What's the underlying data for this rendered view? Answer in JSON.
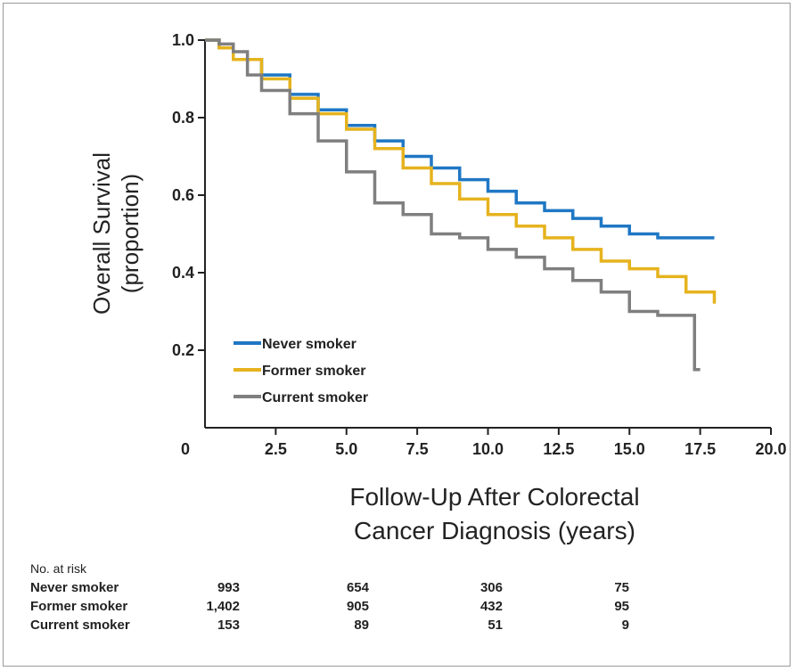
{
  "chart_data": {
    "type": "line",
    "title": "",
    "xlabel_lines": [
      "Follow-Up After Colorectal",
      "Cancer Diagnosis (years)"
    ],
    "ylabel_lines": [
      "Overall Survival",
      "(proportion)"
    ],
    "xlim": [
      0,
      20
    ],
    "ylim": [
      0,
      1.0
    ],
    "x_ticks": [
      "0",
      "2.5",
      "5.0",
      "7.5",
      "10.0",
      "12.5",
      "15.0",
      "17.5",
      "20.0"
    ],
    "y_ticks": [
      "0.2",
      "0.4",
      "0.6",
      "0.8",
      "1.0"
    ],
    "legend_position": "lower-left",
    "series": [
      {
        "name": "Never smoker",
        "color": "#1f77c4",
        "x": [
          0,
          0.5,
          1,
          2,
          3,
          4,
          5,
          6,
          7,
          8,
          9,
          10,
          11,
          12,
          13,
          14,
          15,
          16,
          17,
          18
        ],
        "y": [
          1.0,
          0.98,
          0.95,
          0.91,
          0.86,
          0.82,
          0.78,
          0.74,
          0.7,
          0.67,
          0.64,
          0.61,
          0.58,
          0.56,
          0.54,
          0.52,
          0.5,
          0.49,
          0.49,
          0.49
        ]
      },
      {
        "name": "Former smoker",
        "color": "#e6b31e",
        "x": [
          0,
          0.5,
          1,
          2,
          3,
          4,
          5,
          6,
          7,
          8,
          9,
          10,
          11,
          12,
          13,
          14,
          15,
          16,
          17,
          18
        ],
        "y": [
          1.0,
          0.98,
          0.95,
          0.9,
          0.85,
          0.81,
          0.77,
          0.72,
          0.67,
          0.63,
          0.59,
          0.55,
          0.52,
          0.49,
          0.46,
          0.43,
          0.41,
          0.39,
          0.35,
          0.32
        ]
      },
      {
        "name": "Current smoker",
        "color": "#7f7f7f",
        "x": [
          0,
          0.5,
          1,
          1.5,
          2,
          3,
          4,
          5,
          6,
          7,
          8,
          9,
          10,
          11,
          12,
          13,
          14,
          15,
          16,
          17,
          17.2,
          17.3,
          17.5
        ],
        "y": [
          1.0,
          0.99,
          0.97,
          0.91,
          0.87,
          0.81,
          0.74,
          0.66,
          0.58,
          0.55,
          0.5,
          0.49,
          0.46,
          0.44,
          0.41,
          0.38,
          0.35,
          0.3,
          0.29,
          0.29,
          0.29,
          0.15,
          0.15
        ]
      }
    ],
    "risk_table": {
      "title": "No. at risk",
      "time_points": [
        0,
        5,
        10,
        15
      ],
      "rows": [
        {
          "name": "Never smoker",
          "values": [
            "993",
            "654",
            "306",
            "75"
          ]
        },
        {
          "name": "Former smoker",
          "values": [
            "1,402",
            "905",
            "432",
            "95"
          ]
        },
        {
          "name": "Current smoker",
          "values": [
            "153",
            "89",
            "51",
            "9"
          ]
        }
      ]
    }
  }
}
